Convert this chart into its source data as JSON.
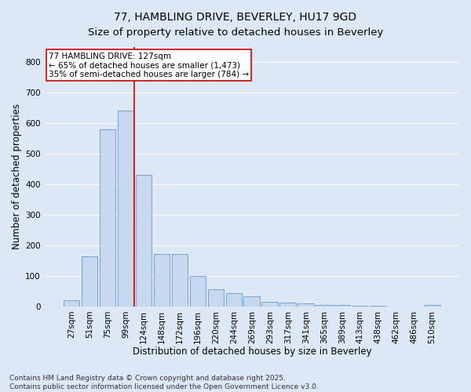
{
  "title_line1": "77, HAMBLING DRIVE, BEVERLEY, HU17 9GD",
  "title_line2": "Size of property relative to detached houses in Beverley",
  "xlabel": "Distribution of detached houses by size in Beverley",
  "ylabel": "Number of detached properties",
  "categories": [
    "27sqm",
    "51sqm",
    "75sqm",
    "99sqm",
    "124sqm",
    "148sqm",
    "172sqm",
    "196sqm",
    "220sqm",
    "244sqm",
    "269sqm",
    "293sqm",
    "317sqm",
    "341sqm",
    "365sqm",
    "389sqm",
    "413sqm",
    "438sqm",
    "462sqm",
    "486sqm",
    "510sqm"
  ],
  "values": [
    20,
    165,
    580,
    643,
    430,
    173,
    173,
    100,
    55,
    43,
    32,
    15,
    12,
    10,
    5,
    4,
    2,
    1,
    0,
    0,
    5
  ],
  "bar_color": "#c5d8f0",
  "bar_edge_color": "#6699cc",
  "vline_x_idx": 3.5,
  "vline_color": "#cc0000",
  "annotation_text": "77 HAMBLING DRIVE: 127sqm\n← 65% of detached houses are smaller (1,473)\n35% of semi-detached houses are larger (784) →",
  "annotation_box_facecolor": "#ffffff",
  "annotation_box_edgecolor": "#cc0000",
  "ylim": [
    0,
    850
  ],
  "yticks": [
    0,
    100,
    200,
    300,
    400,
    500,
    600,
    700,
    800
  ],
  "footnote": "Contains HM Land Registry data © Crown copyright and database right 2025.\nContains public sector information licensed under the Open Government Licence v3.0.",
  "background_color": "#dce8f5",
  "plot_background": "#dce8f5",
  "grid_color": "#ffffff",
  "title_fontsize": 10,
  "axis_label_fontsize": 8.5,
  "tick_fontsize": 7.5,
  "annotation_fontsize": 7.5,
  "footnote_fontsize": 6.5
}
